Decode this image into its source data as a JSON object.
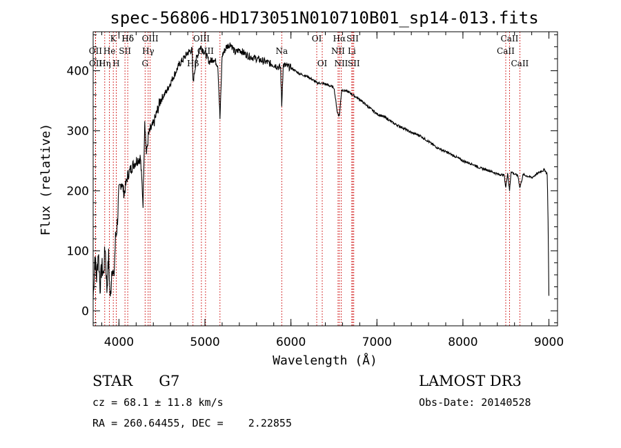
{
  "chart_data": {
    "type": "line",
    "title": "spec-56806-HD173051N010710B01_sp14-013.fits",
    "xlabel": "Wavelength (Å)",
    "ylabel": "Flux (relative)",
    "xlim": [
      3700,
      9100
    ],
    "ylim": [
      -25,
      465
    ],
    "xticks": [
      4000,
      5000,
      6000,
      7000,
      8000,
      9000
    ],
    "yticks": [
      0,
      100,
      200,
      300,
      400
    ],
    "series": [
      {
        "name": "spectrum",
        "x": [
          3700,
          3720,
          3740,
          3760,
          3780,
          3800,
          3820,
          3840,
          3860,
          3880,
          3900,
          3920,
          3940,
          3960,
          3980,
          4000,
          4030,
          4060,
          4100,
          4150,
          4200,
          4250,
          4280,
          4300,
          4320,
          4340,
          4360,
          4400,
          4440,
          4480,
          4500,
          4550,
          4600,
          4650,
          4700,
          4750,
          4800,
          4850,
          4861,
          4900,
          4950,
          5000,
          5050,
          5100,
          5150,
          5175,
          5200,
          5250,
          5300,
          5350,
          5400,
          5500,
          5600,
          5700,
          5800,
          5880,
          5893,
          5910,
          6000,
          6100,
          6200,
          6300,
          6400,
          6500,
          6540,
          6563,
          6590,
          6650,
          6700,
          6800,
          6900,
          7000,
          7100,
          7200,
          7300,
          7400,
          7500,
          7600,
          7700,
          7800,
          7900,
          8000,
          8100,
          8200,
          8300,
          8400,
          8480,
          8498,
          8520,
          8542,
          8560,
          8600,
          8640,
          8662,
          8700,
          8800,
          8900,
          8950,
          8980,
          8990,
          9000
        ],
        "y": [
          20,
          90,
          55,
          100,
          40,
          75,
          60,
          110,
          35,
          90,
          15,
          80,
          50,
          120,
          145,
          200,
          215,
          195,
          225,
          240,
          250,
          255,
          180,
          320,
          260,
          290,
          300,
          310,
          330,
          350,
          355,
          365,
          380,
          395,
          410,
          420,
          430,
          435,
          380,
          420,
          440,
          430,
          415,
          420,
          410,
          320,
          425,
          440,
          445,
          430,
          435,
          425,
          420,
          415,
          410,
          405,
          340,
          410,
          405,
          395,
          390,
          380,
          378,
          372,
          330,
          325,
          368,
          366,
          362,
          352,
          340,
          328,
          322,
          312,
          305,
          297,
          292,
          282,
          272,
          265,
          258,
          250,
          245,
          238,
          234,
          228,
          226,
          205,
          230,
          200,
          232,
          228,
          225,
          205,
          227,
          222,
          232,
          235,
          228,
          150,
          25
        ]
      }
    ],
    "line_markers": [
      {
        "label": "Hδ",
        "wavelength": 4102,
        "row": 0
      },
      {
        "label": "K",
        "wavelength": 3934,
        "row": 0
      },
      {
        "label": "Hδ",
        "wavelength": 4102,
        "row": 0
      },
      {
        "label": "OII",
        "wavelength": 3727,
        "row": 1
      },
      {
        "label": "He",
        "wavelength": 3889,
        "row": 1
      },
      {
        "label": "SII",
        "wavelength": 4070,
        "row": 1
      },
      {
        "label": "OII",
        "wavelength": 3729,
        "row": 2
      },
      {
        "label": "Hη",
        "wavelength": 3835,
        "row": 2
      },
      {
        "label": "H",
        "wavelength": 3968,
        "row": 2
      },
      {
        "label": "OIII",
        "wavelength": 4363,
        "row": 0
      },
      {
        "label": "Hγ",
        "wavelength": 4340,
        "row": 1
      },
      {
        "label": "G",
        "wavelength": 4304,
        "row": 2
      },
      {
        "label": "OIII",
        "wavelength": 4959,
        "row": 0
      },
      {
        "label": "OIII",
        "wavelength": 5007,
        "row": 1
      },
      {
        "label": "Hβ",
        "wavelength": 4861,
        "row": 2
      },
      {
        "label": "Na",
        "wavelength": 5893,
        "row": 1
      },
      {
        "label": "OI",
        "wavelength": 6300,
        "row": 0
      },
      {
        "label": "OI",
        "wavelength": 6364,
        "row": 2
      },
      {
        "label": "Hα",
        "wavelength": 6563,
        "row": 0
      },
      {
        "label": "SII",
        "wavelength": 6717,
        "row": 0
      },
      {
        "label": "NII",
        "wavelength": 6548,
        "row": 1
      },
      {
        "label": "Li",
        "wavelength": 6708,
        "row": 1
      },
      {
        "label": "NII",
        "wavelength": 6584,
        "row": 2
      },
      {
        "label": "SII",
        "wavelength": 6731,
        "row": 2
      },
      {
        "label": "CaII",
        "wavelength": 8542,
        "row": 0
      },
      {
        "label": "CaII",
        "wavelength": 8498,
        "row": 1
      },
      {
        "label": "CaII",
        "wavelength": 8662,
        "row": 2
      }
    ],
    "marker_lines": [
      3727,
      3729,
      3835,
      3889,
      3934,
      3968,
      4070,
      4102,
      4304,
      4340,
      4363,
      4861,
      4959,
      5007,
      5175,
      5893,
      6300,
      6364,
      6548,
      6563,
      6584,
      6708,
      6717,
      6731,
      8498,
      8542,
      8662
    ],
    "marker_color": "#cc0000"
  },
  "info": {
    "star": "STAR",
    "subclass": "G7",
    "cz": "cz = 68.1 ± 11.8 km/s",
    "radec": "RA = 260.64455, DEC =    2.22855",
    "survey": "LAMOST DR3",
    "obsdate": "Obs-Date: 20140528"
  }
}
